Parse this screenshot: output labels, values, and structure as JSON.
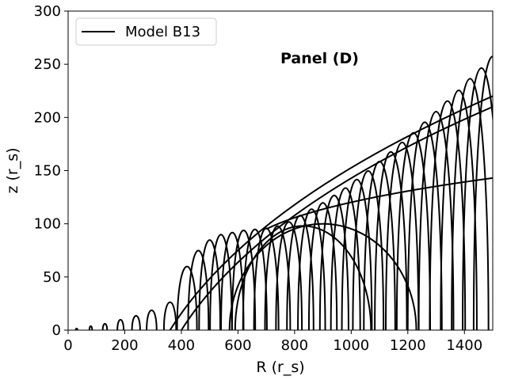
{
  "chart_data": {
    "type": "line",
    "xlabel": "R (r_s)",
    "ylabel": "z (r_s)",
    "xlim": [
      0,
      1500
    ],
    "ylim": [
      0,
      300
    ],
    "xticks": [
      0,
      200,
      400,
      600,
      800,
      1000,
      1200,
      1400
    ],
    "yticks": [
      0,
      50,
      100,
      150,
      200,
      250,
      300
    ],
    "legend": {
      "placement": "top-left",
      "entries": [
        {
          "label": "Model B13",
          "color": "#000000"
        }
      ]
    },
    "annotation": "Panel (D)",
    "line_color": "#000000",
    "grid": false,
    "series": [
      {
        "name": "Model B13",
        "description": "small closed loops near equatorial plane (launch R, peak height)",
        "loops": [
          [
            [
              30,
              2
            ],
            [
              80,
              5
            ],
            [
              130,
              8
            ],
            [
              185,
              13
            ],
            [
              240,
              18
            ],
            [
              295,
              25
            ],
            [
              360,
              35
            ]
          ]
        ]
      }
    ],
    "arches": [
      [
        420,
        60
      ],
      [
        460,
        75
      ],
      [
        500,
        85
      ],
      [
        540,
        90
      ],
      [
        580,
        92
      ],
      [
        620,
        94
      ],
      [
        660,
        95
      ],
      [
        700,
        96
      ],
      [
        740,
        98
      ],
      [
        780,
        102
      ],
      [
        820,
        108
      ],
      [
        860,
        114
      ],
      [
        900,
        120
      ],
      [
        940,
        127
      ],
      [
        980,
        134
      ],
      [
        1020,
        142
      ],
      [
        1060,
        150
      ],
      [
        1100,
        159
      ],
      [
        1140,
        168
      ],
      [
        1180,
        177
      ],
      [
        1220,
        186
      ],
      [
        1260,
        196
      ],
      [
        1300,
        206
      ],
      [
        1340,
        216
      ],
      [
        1380,
        226
      ],
      [
        1420,
        237
      ],
      [
        1460,
        247
      ],
      [
        1500,
        258
      ]
    ],
    "envelope_lines": [
      {
        "from": [
          360,
          0
        ],
        "to": [
          1500,
          220
        ]
      },
      {
        "from": [
          400,
          0
        ],
        "to": [
          1500,
          210
        ]
      },
      {
        "from": [
          700,
          95
        ],
        "to": [
          1500,
          143
        ]
      }
    ],
    "big_loops": [
      {
        "center": [
          830,
          0
        ],
        "rx": 240,
        "ry": 98
      },
      {
        "center": [
          900,
          0
        ],
        "rx": 330,
        "ry": 100
      }
    ]
  }
}
